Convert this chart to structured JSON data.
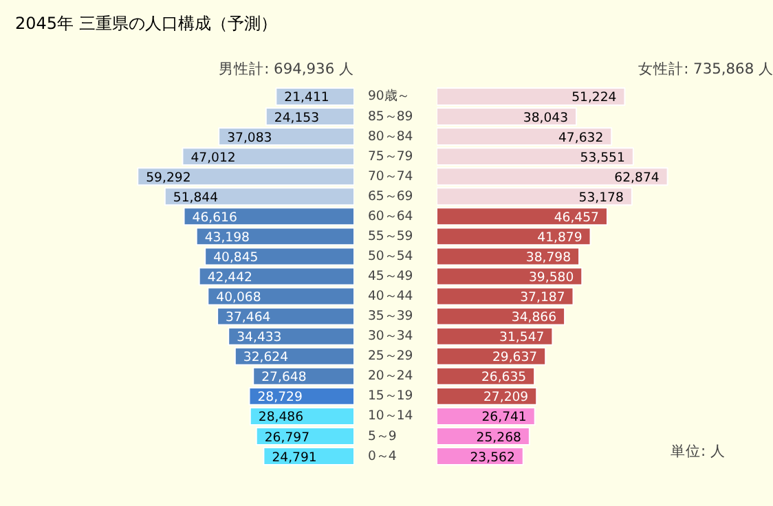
{
  "chart_data": [
    {
      "type": "bar",
      "orientation": "horizontal",
      "title": "2045年 三重県の人口構成（予測）",
      "subtitle": "男性計: 694,936 人",
      "categories": [
        "90歳～",
        "85～89",
        "80～84",
        "75～79",
        "70～74",
        "65～69",
        "60～64",
        "55～59",
        "50～54",
        "45～49",
        "40～44",
        "35～39",
        "30～34",
        "25～29",
        "20～24",
        "15～19",
        "10～14",
        "5～9",
        "0～4"
      ],
      "values": [
        21411,
        24153,
        37083,
        47012,
        59292,
        51844,
        46616,
        43198,
        40845,
        42442,
        40068,
        37464,
        34433,
        32624,
        27648,
        28729,
        28486,
        26797,
        24791
      ],
      "value_labels": [
        "21,411",
        "24,153",
        "37,083",
        "47,012",
        "59,292",
        "51,844",
        "46,616",
        "43,198",
        "40,845",
        "42,442",
        "40,068",
        "37,464",
        "34,433",
        "32,624",
        "27,648",
        "28,729",
        "28,486",
        "26,797",
        "24,791"
      ],
      "colors": [
        "#b8cce4",
        "#b8cce4",
        "#b8cce4",
        "#b8cce4",
        "#b8cce4",
        "#b8cce4",
        "#4f81bd",
        "#4f81bd",
        "#4f81bd",
        "#4f81bd",
        "#4f81bd",
        "#4f81bd",
        "#4f81bd",
        "#4f81bd",
        "#4f81bd",
        "#3f7fd2",
        "#5ce1fd",
        "#5ce1fd",
        "#5ce1fd"
      ],
      "tick_labels": "y"
    },
    {
      "type": "bar",
      "orientation": "horizontal",
      "subtitle": "女性計: 735,868 人",
      "values": [
        51224,
        38043,
        47632,
        53551,
        62874,
        53178,
        46457,
        41879,
        38798,
        39580,
        37187,
        34866,
        31547,
        29637,
        26635,
        27209,
        26741,
        25268,
        23562
      ],
      "value_labels": [
        "51,224",
        "38,043",
        "47,632",
        "53,551",
        "62,874",
        "53,178",
        "46,457",
        "41,879",
        "38,798",
        "39,580",
        "37,187",
        "34,866",
        "31,547",
        "29,637",
        "26,635",
        "27,209",
        "26,741",
        "25,268",
        "23,562"
      ],
      "colors": [
        "#f2d8dc",
        "#f2d8dc",
        "#f2d8dc",
        "#f2d8dc",
        "#f2d8dc",
        "#f2d8dc",
        "#c0504d",
        "#c0504d",
        "#c0504d",
        "#c0504d",
        "#c0504d",
        "#c0504d",
        "#c0504d",
        "#c0504d",
        "#c0504d",
        "#c0504d",
        "#f98ad6",
        "#f98ad6",
        "#f98ad6"
      ],
      "tick_labels": false,
      "annotations": [
        "単位: 人"
      ]
    }
  ]
}
